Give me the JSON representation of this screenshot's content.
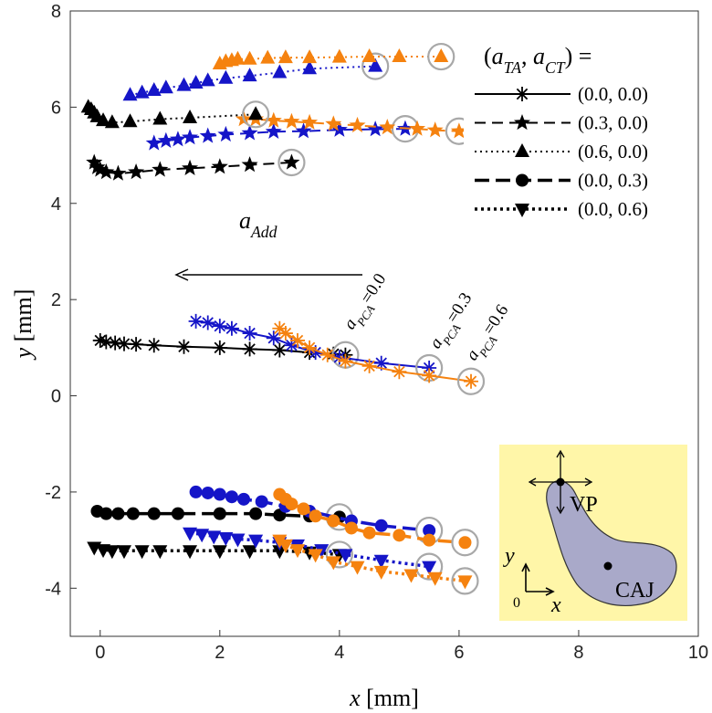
{
  "chart_data": {
    "type": "line",
    "xlabel": [
      {
        "text": "x",
        "italic": true
      },
      {
        "text": " [mm]"
      }
    ],
    "ylabel": [
      {
        "text": "y",
        "italic": true
      },
      {
        "text": " [mm]"
      }
    ],
    "xlim": [
      -0.5,
      10
    ],
    "ylim": [
      -5,
      8
    ],
    "xticks": [
      0,
      2,
      4,
      6,
      8,
      10
    ],
    "yticks": [
      -4,
      -2,
      0,
      2,
      4,
      6,
      8
    ],
    "grid": true,
    "end_circle": true,
    "legend": {
      "title": [
        {
          "text": "("
        },
        {
          "text": "a",
          "italic": true
        },
        {
          "text": "TA",
          "sub": true,
          "italic": true
        },
        {
          "text": ", "
        },
        {
          "text": "a",
          "italic": true
        },
        {
          "text": "CT",
          "sub": true,
          "italic": true
        },
        {
          "text": ") ="
        }
      ],
      "entries": [
        {
          "label": "(0.0, 0.0)",
          "marker": "asterisk",
          "line": "solid"
        },
        {
          "label": "(0.3, 0.0)",
          "marker": "star",
          "line": "dashed"
        },
        {
          "label": "(0.6, 0.0)",
          "marker": "triangle-up",
          "line": "dotted"
        },
        {
          "label": "(0.0, 0.3)",
          "marker": "circle",
          "line": "long-dashed"
        },
        {
          "label": "(0.0, 0.6)",
          "marker": "triangle-down",
          "line": "dotted-thick"
        }
      ]
    },
    "series": [
      {
        "style": 0,
        "color": "#000000",
        "x": [
          0,
          0.1,
          0.25,
          0.4,
          0.6,
          0.9,
          1.4,
          2.0,
          2.5,
          3.0,
          3.5,
          3.9,
          4.1
        ],
        "values": [
          1.15,
          1.12,
          1.1,
          1.08,
          1.07,
          1.05,
          1.02,
          1.0,
          0.97,
          0.95,
          0.9,
          0.87,
          0.85
        ]
      },
      {
        "style": 0,
        "color": "#1515c8",
        "x": [
          1.6,
          1.8,
          2.0,
          2.2,
          2.5,
          2.9,
          3.2,
          3.6,
          4.0,
          4.7,
          5.5
        ],
        "values": [
          1.55,
          1.52,
          1.45,
          1.4,
          1.3,
          1.2,
          1.05,
          0.9,
          0.8,
          0.68,
          0.58
        ]
      },
      {
        "style": 0,
        "color": "#f5820f",
        "x": [
          3.0,
          3.1,
          3.3,
          3.5,
          3.8,
          4.1,
          4.5,
          5.0,
          5.5,
          6.2
        ],
        "values": [
          1.4,
          1.3,
          1.15,
          1.0,
          0.85,
          0.72,
          0.62,
          0.5,
          0.42,
          0.3
        ]
      },
      {
        "style": 1,
        "color": "#000000",
        "x": [
          -0.1,
          -0.05,
          0,
          0.1,
          0.3,
          0.6,
          1.0,
          1.5,
          2.0,
          2.5,
          3.2
        ],
        "values": [
          4.85,
          4.75,
          4.7,
          4.65,
          4.62,
          4.65,
          4.7,
          4.73,
          4.76,
          4.8,
          4.85
        ]
      },
      {
        "style": 1,
        "color": "#1515c8",
        "x": [
          0.9,
          1.1,
          1.3,
          1.5,
          1.8,
          2.1,
          2.5,
          2.9,
          3.4,
          4.0,
          4.6,
          5.1
        ],
        "values": [
          5.25,
          5.3,
          5.33,
          5.37,
          5.4,
          5.43,
          5.46,
          5.49,
          5.5,
          5.53,
          5.54,
          5.55
        ]
      },
      {
        "style": 1,
        "color": "#f5820f",
        "x": [
          2.4,
          2.6,
          2.9,
          3.2,
          3.5,
          3.9,
          4.3,
          4.8,
          5.3,
          5.6,
          6.0
        ],
        "values": [
          5.75,
          5.75,
          5.72,
          5.7,
          5.68,
          5.65,
          5.62,
          5.58,
          5.55,
          5.52,
          5.5
        ]
      },
      {
        "style": 2,
        "color": "#000000",
        "x": [
          -0.2,
          -0.15,
          -0.1,
          -0.05,
          0.05,
          0.2,
          0.5,
          1.0,
          1.5,
          2.6
        ],
        "values": [
          6.0,
          5.95,
          5.88,
          5.8,
          5.72,
          5.68,
          5.7,
          5.75,
          5.78,
          5.85
        ]
      },
      {
        "style": 2,
        "color": "#1515c8",
        "x": [
          0.5,
          0.7,
          0.9,
          1.1,
          1.4,
          1.6,
          1.8,
          2.1,
          2.5,
          3.0,
          3.5,
          4.6
        ],
        "values": [
          6.25,
          6.3,
          6.35,
          6.4,
          6.45,
          6.5,
          6.55,
          6.6,
          6.65,
          6.72,
          6.8,
          6.85
        ]
      },
      {
        "style": 2,
        "color": "#f5820f",
        "x": [
          2.0,
          2.1,
          2.2,
          2.3,
          2.5,
          2.8,
          3.1,
          3.5,
          4.0,
          4.5,
          5.0,
          5.7
        ],
        "values": [
          6.9,
          6.95,
          6.97,
          7.0,
          7.0,
          7.02,
          7.03,
          7.03,
          7.04,
          7.05,
          7.05,
          7.05
        ]
      },
      {
        "style": 3,
        "color": "#000000",
        "x": [
          -0.05,
          0.1,
          0.3,
          0.55,
          0.9,
          1.3,
          2.0,
          2.6,
          3.0,
          3.5,
          4.0
        ],
        "values": [
          -2.4,
          -2.45,
          -2.45,
          -2.45,
          -2.45,
          -2.45,
          -2.45,
          -2.45,
          -2.48,
          -2.5,
          -2.52
        ]
      },
      {
        "style": 3,
        "color": "#1515c8",
        "x": [
          1.6,
          1.8,
          2.0,
          2.2,
          2.4,
          2.7,
          3.1,
          3.5,
          4.2,
          4.7,
          5.5
        ],
        "values": [
          -2.0,
          -2.02,
          -2.05,
          -2.1,
          -2.15,
          -2.2,
          -2.3,
          -2.4,
          -2.6,
          -2.7,
          -2.8
        ]
      },
      {
        "style": 3,
        "color": "#f5820f",
        "x": [
          3.0,
          3.1,
          3.2,
          3.4,
          3.6,
          3.9,
          4.2,
          4.5,
          5.0,
          5.5,
          6.1
        ],
        "values": [
          -2.05,
          -2.15,
          -2.25,
          -2.35,
          -2.5,
          -2.6,
          -2.75,
          -2.85,
          -2.9,
          -3.0,
          -3.05
        ]
      },
      {
        "style": 4,
        "color": "#000000",
        "x": [
          -0.1,
          0.05,
          0.2,
          0.4,
          0.7,
          1.0,
          1.5,
          2.0,
          2.5,
          3.0,
          3.5,
          4.0
        ],
        "values": [
          -3.15,
          -3.2,
          -3.22,
          -3.22,
          -3.22,
          -3.22,
          -3.22,
          -3.22,
          -3.22,
          -3.22,
          -3.25,
          -3.3
        ]
      },
      {
        "style": 4,
        "color": "#1515c8",
        "x": [
          1.5,
          1.7,
          1.9,
          2.1,
          2.3,
          2.6,
          3.0,
          3.3,
          3.7,
          4.1,
          4.7,
          5.5
        ],
        "values": [
          -2.85,
          -2.88,
          -2.92,
          -2.95,
          -2.98,
          -3.0,
          -3.05,
          -3.1,
          -3.2,
          -3.3,
          -3.42,
          -3.55
        ]
      },
      {
        "style": 4,
        "color": "#f5820f",
        "x": [
          3.0,
          3.1,
          3.3,
          3.6,
          3.9,
          4.3,
          4.7,
          5.2,
          5.6,
          6.1
        ],
        "values": [
          -3.0,
          -3.1,
          -3.2,
          -3.3,
          -3.45,
          -3.55,
          -3.65,
          -3.72,
          -3.78,
          -3.85
        ]
      }
    ],
    "annotations": [
      {
        "segments": [
          {
            "text": "a",
            "italic": true
          },
          {
            "text": "Add",
            "sub": true,
            "italic": true
          }
        ]
      },
      {
        "color": "#000000",
        "segments": [
          {
            "text": "a",
            "italic": true
          },
          {
            "text": "PCA",
            "sub": true,
            "italic": true
          },
          {
            "text": "=0.0"
          }
        ]
      },
      {
        "color": "#1515c8",
        "segments": [
          {
            "text": "a",
            "italic": true
          },
          {
            "text": "PCA",
            "sub": true,
            "italic": true
          },
          {
            "text": "=0.3"
          }
        ]
      },
      {
        "color": "#f5820f",
        "segments": [
          {
            "text": "a",
            "italic": true
          },
          {
            "text": "PCA",
            "sub": true,
            "italic": true
          },
          {
            "text": "=0.6"
          }
        ]
      }
    ],
    "inset": {
      "labels": [
        "VP",
        "CAJ"
      ],
      "axis_x": "x",
      "axis_y": "y",
      "origin": "0"
    }
  }
}
